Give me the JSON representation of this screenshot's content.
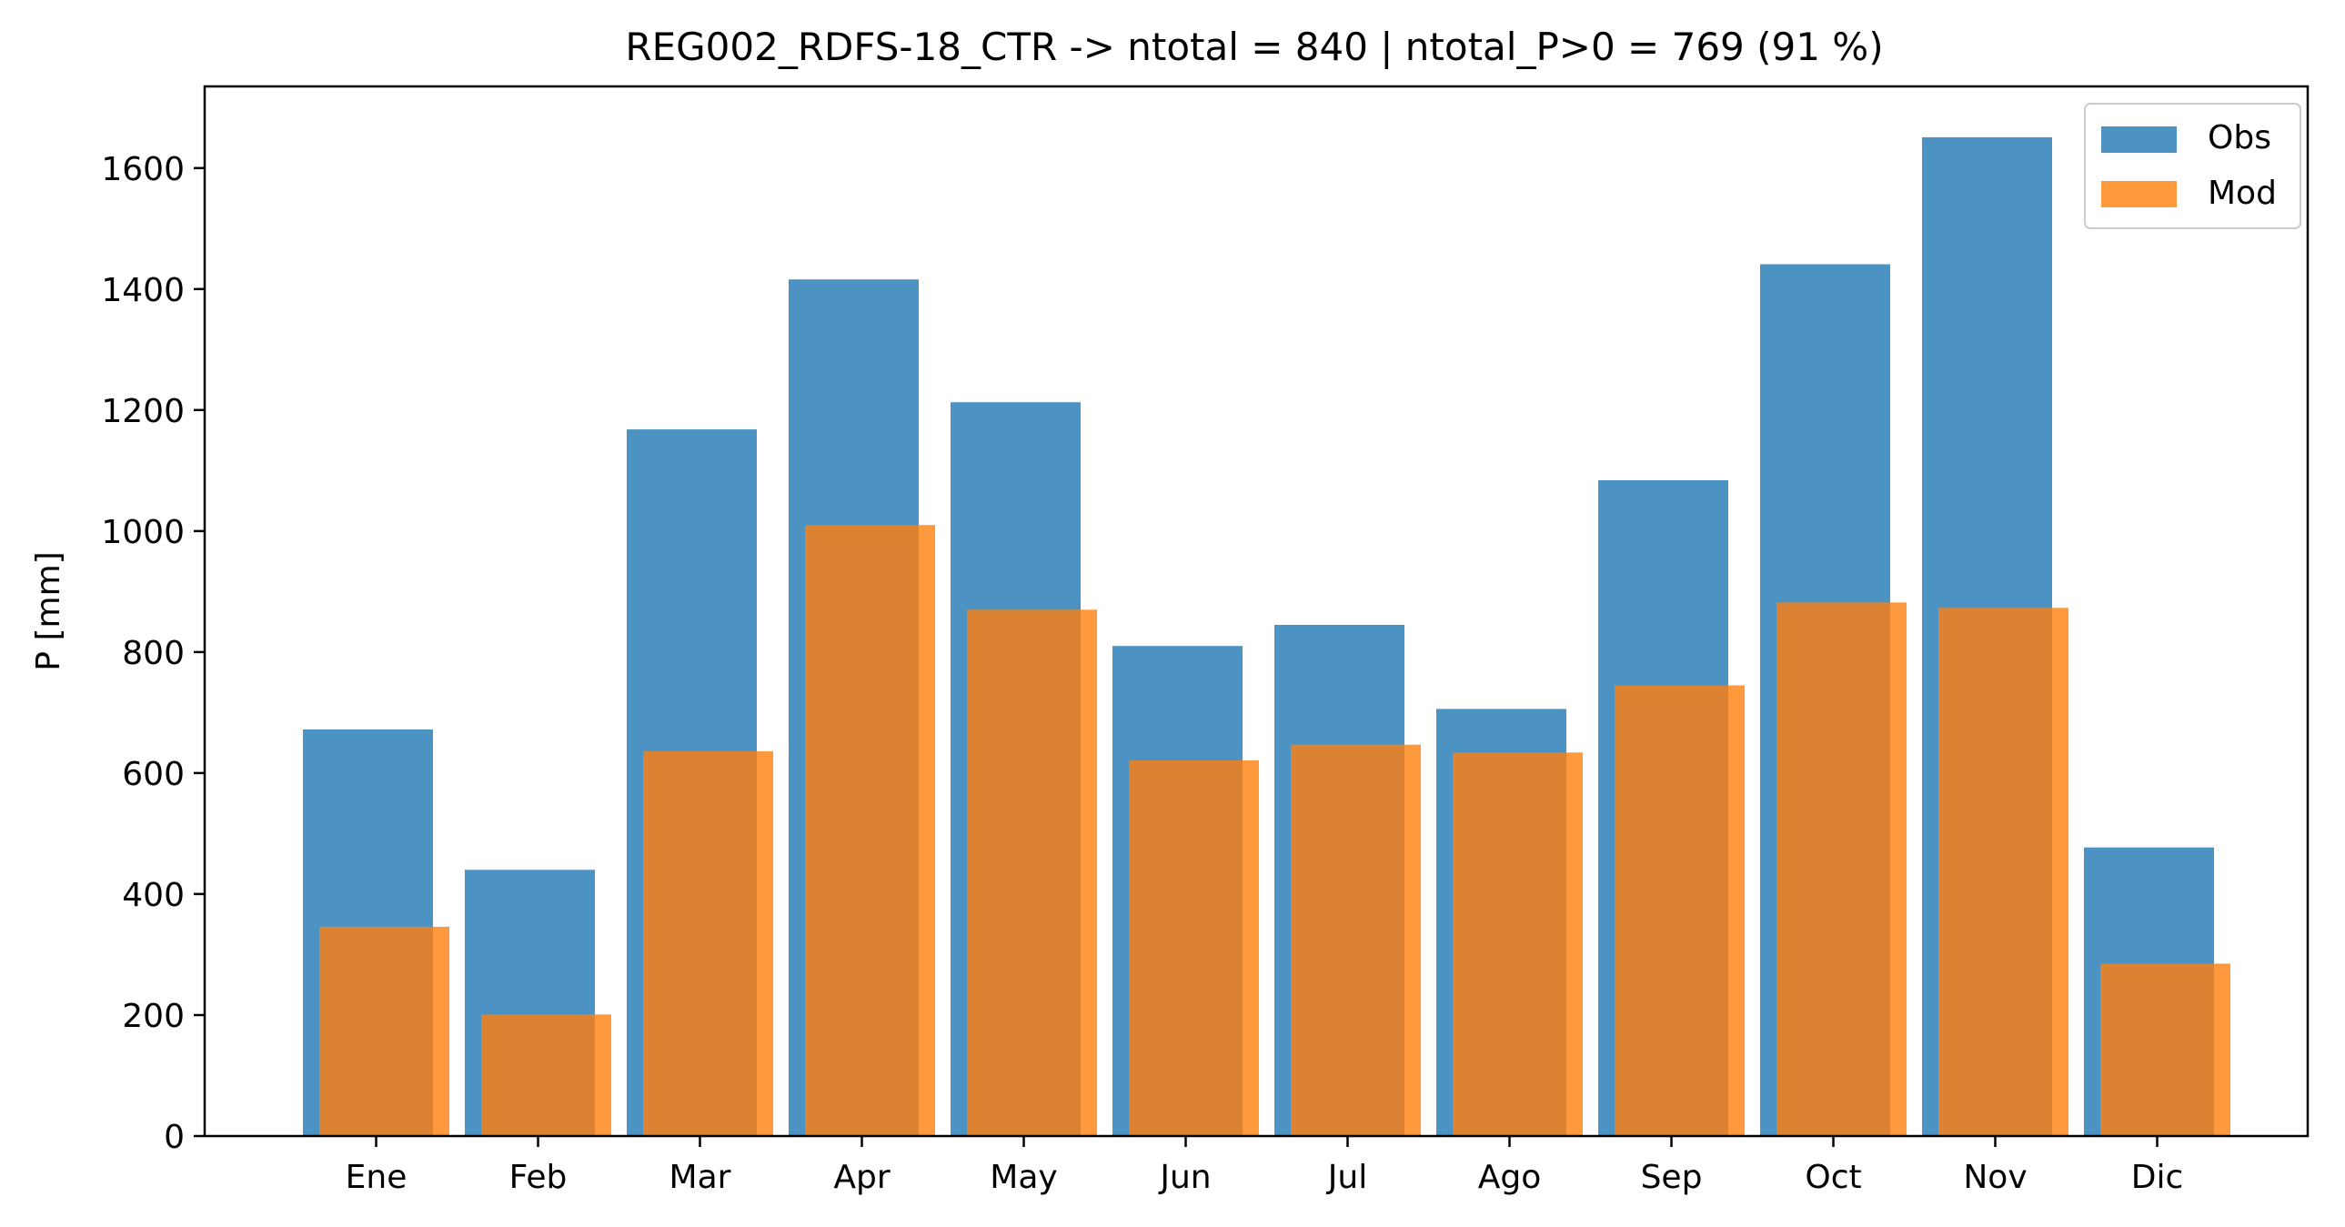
{
  "chart_data": {
    "type": "bar",
    "title": "REG002_RDFS-18_CTR -> ntotal = 840 | ntotal_P>0 = 769 (91 %)",
    "xlabel": "",
    "ylabel": "P [mm]",
    "categories": [
      "Ene",
      "Feb",
      "Mar",
      "Apr",
      "May",
      "Jun",
      "Jul",
      "Ago",
      "Sep",
      "Oct",
      "Nov",
      "Dic"
    ],
    "series": [
      {
        "name": "Obs",
        "color": "#1f77b4",
        "opacity": 0.8,
        "values": [
          672,
          440,
          1168,
          1416,
          1213,
          810,
          845,
          706,
          1084,
          1441,
          1651,
          477
        ]
      },
      {
        "name": "Mod",
        "color": "#ff7f0e",
        "opacity": 0.8,
        "values": [
          346,
          201,
          636,
          1010,
          870,
          621,
          647,
          634,
          745,
          882,
          873,
          285
        ]
      }
    ],
    "ylim": [
      0,
      1735
    ],
    "yticks": [
      0,
      200,
      400,
      600,
      800,
      1000,
      1200,
      1400,
      1600
    ],
    "grid": false,
    "legend_position": "top-right"
  }
}
